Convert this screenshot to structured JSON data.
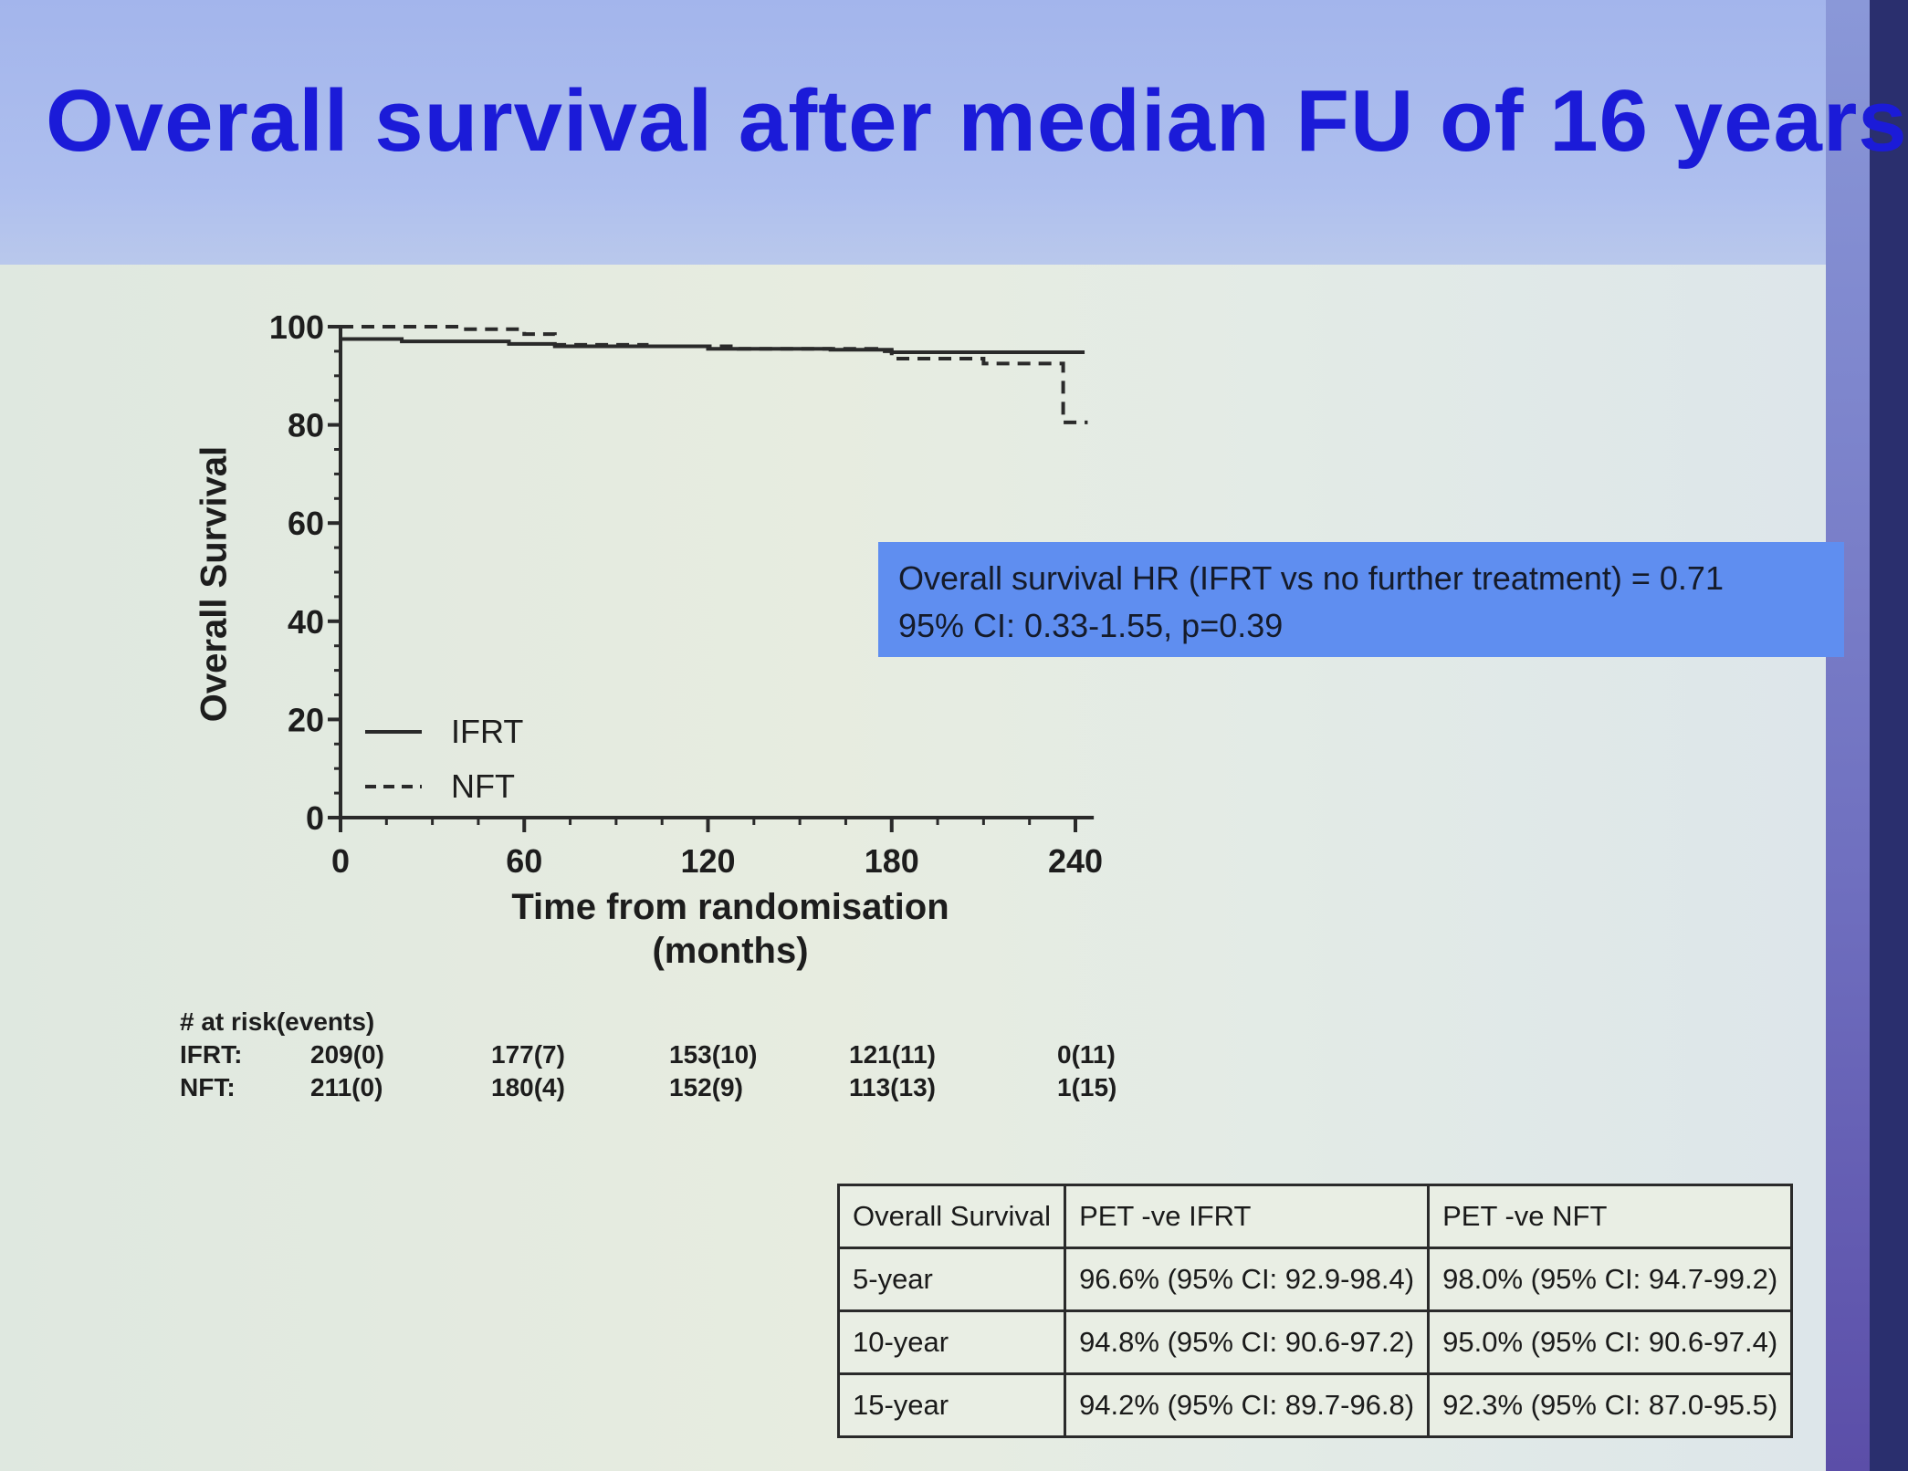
{
  "title": "Overall survival after median FU of 16 years",
  "hr_box": {
    "line1": "Overall survival HR (IFRT vs no further treatment) = 0.71",
    "line2": "95% CI: 0.33-1.55, p=0.39"
  },
  "chart_data": {
    "type": "line",
    "xlabel_line1": "Time from randomisation",
    "xlabel_line2": "(months)",
    "ylabel": "Overall Survival",
    "xlim": [
      0,
      246
    ],
    "ylim": [
      0,
      100
    ],
    "x_ticks": [
      "0",
      "60",
      "120",
      "180",
      "240"
    ],
    "y_ticks": [
      "0",
      "20",
      "40",
      "60",
      "80",
      "100"
    ],
    "legend_position": "bottom-left",
    "series": [
      {
        "name": "IFRT",
        "line_style": "solid",
        "points": [
          [
            0,
            97.5
          ],
          [
            20,
            97.0
          ],
          [
            55,
            96.5
          ],
          [
            70,
            96.0
          ],
          [
            120,
            95.5
          ],
          [
            160,
            95.3
          ],
          [
            180,
            94.8
          ],
          [
            243,
            94.8
          ]
        ]
      },
      {
        "name": "NFT",
        "line_style": "dashed",
        "points": [
          [
            0,
            100
          ],
          [
            40,
            99.5
          ],
          [
            60,
            98.5
          ],
          [
            70,
            96.3
          ],
          [
            100,
            96.0
          ],
          [
            130,
            95.5
          ],
          [
            175,
            95.0
          ],
          [
            180,
            93.5
          ],
          [
            205,
            93.5
          ],
          [
            210,
            92.5
          ],
          [
            236,
            92.5
          ],
          [
            236,
            80.5
          ],
          [
            244,
            80.5
          ]
        ]
      }
    ]
  },
  "at_risk": {
    "header": "# at risk(events)",
    "rows": [
      {
        "label": "IFRT:",
        "values": [
          "209(0)",
          "177(7)",
          "153(10)",
          "121(11)",
          "0(11)"
        ]
      },
      {
        "label": "NFT:",
        "values": [
          "211(0)",
          "180(4)",
          "152(9)",
          "113(13)",
          "1(15)"
        ]
      }
    ]
  },
  "table": {
    "headers": [
      "Overall Survival",
      "PET -ve IFRT",
      "PET -ve NFT"
    ],
    "rows": [
      [
        "5-year",
        "96.6% (95% CI: 92.9-98.4)",
        "98.0% (95% CI: 94.7-99.2)"
      ],
      [
        "10-year",
        "94.8% (95% CI: 90.6-97.2)",
        "95.0% (95% CI: 90.6-97.4)"
      ],
      [
        "15-year",
        "94.2% (95% CI: 89.7-96.8)",
        "92.3% (95% CI: 87.0-95.5)"
      ]
    ]
  }
}
